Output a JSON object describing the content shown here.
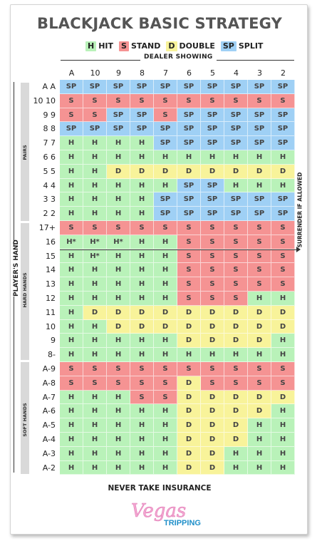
{
  "title": "BLACKJACK BASIC STRATEGY",
  "legend": [
    {
      "code": "H",
      "label": "HIT"
    },
    {
      "code": "S",
      "label": "STAND"
    },
    {
      "code": "D",
      "label": "DOUBLE"
    },
    {
      "code": "SP",
      "label": "SPLIT"
    }
  ],
  "colors": {
    "H": "#b9f2b9",
    "S": "#f59393",
    "D": "#f8f39a",
    "SP": "#9fd0f5"
  },
  "dealer_label": "DEALER SHOWING",
  "dealer_cards": [
    "A",
    "10",
    "9",
    "8",
    "7",
    "6",
    "5",
    "4",
    "3",
    "2"
  ],
  "player_label": "PLAYER'S HAND",
  "surrender_label": "SURRENDER IF ALLOWED",
  "sections": {
    "pairs": "PAIRS",
    "hard": "HARD HANDS",
    "soft": "SOFT HANDS"
  },
  "rows": [
    {
      "hand": "A A",
      "cells": [
        "SP",
        "SP",
        "SP",
        "SP",
        "SP",
        "SP",
        "SP",
        "SP",
        "SP",
        "SP"
      ]
    },
    {
      "hand": "10 10",
      "cells": [
        "S",
        "S",
        "S",
        "S",
        "S",
        "S",
        "S",
        "S",
        "S",
        "S"
      ]
    },
    {
      "hand": "9 9",
      "cells": [
        "S",
        "S",
        "SP",
        "SP",
        "S",
        "SP",
        "SP",
        "SP",
        "SP",
        "SP"
      ]
    },
    {
      "hand": "8 8",
      "cells": [
        "SP",
        "SP",
        "SP",
        "SP",
        "SP",
        "SP",
        "SP",
        "SP",
        "SP",
        "SP"
      ]
    },
    {
      "hand": "7 7",
      "cells": [
        "H",
        "H",
        "H",
        "H",
        "SP",
        "SP",
        "SP",
        "SP",
        "SP",
        "SP"
      ]
    },
    {
      "hand": "6 6",
      "cells": [
        "H",
        "H",
        "H",
        "H",
        "H",
        "H",
        "H",
        "H",
        "H",
        "H"
      ]
    },
    {
      "hand": "5 5",
      "cells": [
        "H",
        "H",
        "D",
        "D",
        "D",
        "D",
        "D",
        "D",
        "D",
        "D"
      ]
    },
    {
      "hand": "4 4",
      "cells": [
        "H",
        "H",
        "H",
        "H",
        "H",
        "SP",
        "SP",
        "H",
        "H",
        "H"
      ]
    },
    {
      "hand": "3 3",
      "cells": [
        "H",
        "H",
        "H",
        "H",
        "SP",
        "SP",
        "SP",
        "SP",
        "SP",
        "SP"
      ]
    },
    {
      "hand": "2 2",
      "cells": [
        "H",
        "H",
        "H",
        "H",
        "SP",
        "SP",
        "SP",
        "SP",
        "SP",
        "SP"
      ]
    },
    {
      "hand": "17+",
      "cells": [
        "S",
        "S",
        "S",
        "S",
        "S",
        "S",
        "S",
        "S",
        "S",
        "S"
      ]
    },
    {
      "hand": "16",
      "cells": [
        "H*",
        "H*",
        "H*",
        "H",
        "H",
        "S",
        "S",
        "S",
        "S",
        "S"
      ]
    },
    {
      "hand": "15",
      "cells": [
        "H",
        "H*",
        "H",
        "H",
        "H",
        "S",
        "S",
        "S",
        "S",
        "S"
      ]
    },
    {
      "hand": "14",
      "cells": [
        "H",
        "H",
        "H",
        "H",
        "H",
        "S",
        "S",
        "S",
        "S",
        "S"
      ]
    },
    {
      "hand": "13",
      "cells": [
        "H",
        "H",
        "H",
        "H",
        "H",
        "S",
        "S",
        "S",
        "S",
        "S"
      ]
    },
    {
      "hand": "12",
      "cells": [
        "H",
        "H",
        "H",
        "H",
        "H",
        "S",
        "S",
        "S",
        "H",
        "H"
      ]
    },
    {
      "hand": "11",
      "cells": [
        "H",
        "D",
        "D",
        "D",
        "D",
        "D",
        "D",
        "D",
        "D",
        "D"
      ]
    },
    {
      "hand": "10",
      "cells": [
        "H",
        "H",
        "D",
        "D",
        "D",
        "D",
        "D",
        "D",
        "D",
        "D"
      ]
    },
    {
      "hand": "9",
      "cells": [
        "H",
        "H",
        "H",
        "H",
        "H",
        "D",
        "D",
        "D",
        "D",
        "H"
      ]
    },
    {
      "hand": "8-",
      "cells": [
        "H",
        "H",
        "H",
        "H",
        "H",
        "H",
        "H",
        "H",
        "H",
        "H"
      ]
    },
    {
      "hand": "A-9",
      "cells": [
        "S",
        "S",
        "S",
        "S",
        "S",
        "S",
        "S",
        "S",
        "S",
        "S"
      ]
    },
    {
      "hand": "A-8",
      "cells": [
        "S",
        "S",
        "S",
        "S",
        "S",
        "D",
        "S",
        "S",
        "S",
        "S"
      ]
    },
    {
      "hand": "A-7",
      "cells": [
        "H",
        "H",
        "H",
        "S",
        "S",
        "D",
        "D",
        "D",
        "D",
        "D"
      ]
    },
    {
      "hand": "A-6",
      "cells": [
        "H",
        "H",
        "H",
        "H",
        "H",
        "D",
        "D",
        "D",
        "D",
        "H"
      ]
    },
    {
      "hand": "A-5",
      "cells": [
        "H",
        "H",
        "H",
        "H",
        "H",
        "D",
        "D",
        "D",
        "H",
        "H"
      ]
    },
    {
      "hand": "A-4",
      "cells": [
        "H",
        "H",
        "H",
        "H",
        "H",
        "D",
        "D",
        "D",
        "H",
        "H"
      ]
    },
    {
      "hand": "A-3",
      "cells": [
        "H",
        "H",
        "H",
        "H",
        "H",
        "D",
        "D",
        "H",
        "H",
        "H"
      ]
    },
    {
      "hand": "A-2",
      "cells": [
        "H",
        "H",
        "H",
        "H",
        "H",
        "D",
        "D",
        "H",
        "H",
        "H"
      ]
    }
  ],
  "footer": "NEVER TAKE INSURANCE",
  "logo": {
    "line1": "Vegas",
    "line2": "TRIPPING"
  }
}
